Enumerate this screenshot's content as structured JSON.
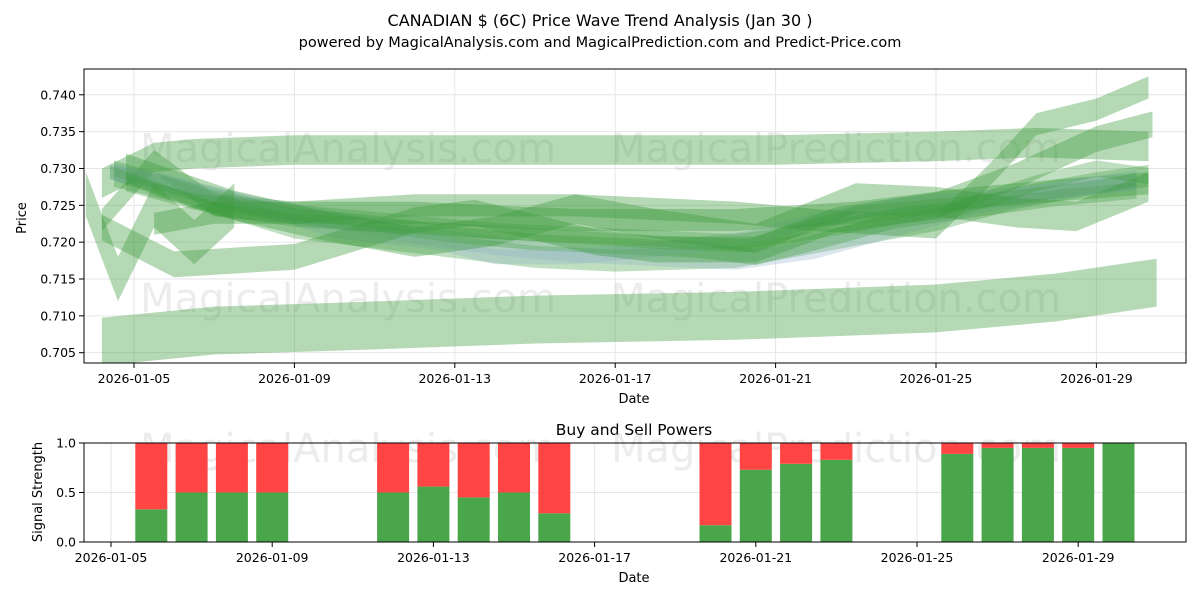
{
  "title": "CANADIAN $ (6C) Price Wave Trend Analysis (Jan 30 )",
  "subtitle": "powered by MagicalAnalysis.com and MagicalPrediction.com and Predict-Price.com",
  "watermarks": [
    "MagicalAnalysis.com",
    "MagicalPrediction.com"
  ],
  "colors": {
    "band": "#3c9c3c",
    "band_blue": "#8fb0c8",
    "buy": "#4aa64a",
    "sell": "#ff4444",
    "grid": "#e6e6e6"
  },
  "chart_data": [
    {
      "type": "area",
      "name": "price-wave",
      "xlabel": "Date",
      "ylabel": "Price",
      "grid": true,
      "xlim": [
        "2026-01-03.7",
        "2026-01-31.7"
      ],
      "ylim": [
        0.7036,
        0.7435
      ],
      "xticks": [
        "2026-01-05",
        "2026-01-09",
        "2026-01-13",
        "2026-01-17",
        "2026-01-21",
        "2026-01-25",
        "2026-01-29"
      ],
      "yticks": [
        0.705,
        0.71,
        0.715,
        0.72,
        0.725,
        0.73,
        0.735,
        0.74
      ],
      "series": [
        {
          "name": "wave-1",
          "x": [
            4.2,
            5.5,
            6.5,
            9,
            13,
            17,
            21,
            25,
            27.5,
            30.3
          ],
          "y": [
            0.728,
            0.7315,
            0.732,
            0.7325,
            0.7325,
            0.7325,
            0.7325,
            0.733,
            0.7335,
            0.733
          ],
          "width": 0.004
        },
        {
          "name": "wave-2",
          "x": [
            4.2,
            5.5,
            7,
            9,
            12,
            16,
            20,
            23,
            26,
            28,
            30.3
          ],
          "y": [
            0.723,
            0.731,
            0.725,
            0.724,
            0.724,
            0.723,
            0.723,
            0.724,
            0.726,
            0.727,
            0.728
          ],
          "width": 0.003
        },
        {
          "name": "wave-3",
          "x": [
            4.5,
            6,
            9,
            12,
            15,
            17,
            20,
            22,
            25,
            27,
            29,
            30.3
          ],
          "y": [
            0.729,
            0.727,
            0.722,
            0.72,
            0.718,
            0.7175,
            0.718,
            0.72,
            0.723,
            0.726,
            0.728,
            0.729
          ],
          "width": 0.003
        },
        {
          "name": "wave-4",
          "x": [
            4.5,
            6,
            8,
            10,
            12,
            14,
            16,
            18,
            20,
            22,
            24,
            26,
            28,
            30
          ],
          "y": [
            0.7295,
            0.7275,
            0.725,
            0.723,
            0.721,
            0.7195,
            0.7185,
            0.718,
            0.7175,
            0.719,
            0.722,
            0.725,
            0.727,
            0.7285
          ],
          "width": 0.0025
        },
        {
          "name": "wave-5",
          "x": [
            4.5,
            7,
            9,
            11,
            13,
            15,
            17,
            19,
            20.5,
            22,
            24,
            26,
            28,
            30
          ],
          "y": [
            0.73,
            0.726,
            0.7235,
            0.7225,
            0.721,
            0.72,
            0.7195,
            0.719,
            0.718,
            0.72,
            0.723,
            0.7245,
            0.726,
            0.727
          ],
          "width": 0.0022
        },
        {
          "name": "wave-6",
          "x": [
            4.4,
            6,
            8,
            10,
            12.5,
            14,
            16,
            18,
            20.3,
            22,
            24,
            26,
            28,
            30
          ],
          "y": [
            0.7295,
            0.728,
            0.725,
            0.7215,
            0.72,
            0.718,
            0.718,
            0.719,
            0.7205,
            0.723,
            0.725,
            0.726,
            0.727,
            0.728
          ],
          "width": 0.002
        },
        {
          "name": "wave-7",
          "x": [
            4.4,
            7,
            9,
            12,
            15,
            18,
            20.3,
            23,
            26,
            29,
            30
          ],
          "y": [
            0.7295,
            0.7245,
            0.723,
            0.722,
            0.721,
            0.72,
            0.7195,
            0.724,
            0.7255,
            0.7275,
            0.7285
          ],
          "width": 0.0018
        },
        {
          "name": "wave-8",
          "x": [
            4.8,
            6.5,
            9,
            12,
            14,
            16,
            18,
            20,
            22,
            24,
            25.5,
            27.5,
            29,
            30.3
          ],
          "y": [
            0.728,
            0.7255,
            0.724,
            0.7225,
            0.7215,
            0.721,
            0.7205,
            0.72,
            0.7215,
            0.7235,
            0.7245,
            0.728,
            0.73,
            0.729
          ],
          "width": 0.0022
        },
        {
          "name": "wave-9",
          "x": [
            4.2,
            6,
            9,
            12,
            13.5,
            15,
            16.5,
            18,
            20.5,
            22.5,
            25,
            27,
            29,
            30.4
          ],
          "y": [
            0.722,
            0.717,
            0.718,
            0.723,
            0.724,
            0.722,
            0.72,
            0.719,
            0.719,
            0.723,
            0.725,
            0.729,
            0.734,
            0.736
          ],
          "width": 0.0035
        },
        {
          "name": "wave-10",
          "x": [
            4.8,
            7.5,
            9.5,
            12,
            14,
            16,
            18,
            20.5,
            23,
            25,
            27,
            28.5,
            30.3
          ],
          "y": [
            0.73,
            0.725,
            0.7225,
            0.72,
            0.7215,
            0.7245,
            0.7225,
            0.7205,
            0.726,
            0.7255,
            0.724,
            0.7235,
            0.7275
          ],
          "width": 0.004
        },
        {
          "name": "wave-11",
          "x": [
            5.5,
            7,
            9,
            12,
            16,
            20,
            22,
            25,
            26.5,
            27.5,
            29,
            30.3
          ],
          "y": [
            0.7225,
            0.724,
            0.724,
            0.725,
            0.725,
            0.724,
            0.723,
            0.722,
            0.73,
            0.736,
            0.738,
            0.741
          ],
          "width": 0.003
        },
        {
          "name": "wave-12",
          "x": [
            3.8,
            4.6,
            5.5,
            6.5,
            7.5
          ],
          "y": [
            0.7265,
            0.715,
            0.725,
            0.72,
            0.725
          ],
          "width": 0.006
        },
        {
          "name": "wave-13",
          "x": [
            4.2,
            7,
            10,
            15,
            20,
            25,
            28,
            30.5
          ],
          "y": [
            0.7065,
            0.708,
            0.7085,
            0.7095,
            0.71,
            0.711,
            0.7125,
            0.7145
          ],
          "width": 0.0065
        }
      ]
    },
    {
      "type": "bar",
      "name": "buy-sell-powers",
      "title": "Buy and Sell Powers",
      "xlabel": "Date",
      "ylabel": "Signal Strength",
      "grid": true,
      "ylim": [
        0.0,
        1.0
      ],
      "yticks": [
        "0.0",
        "0.5",
        "1.0"
      ],
      "xticks": [
        "2026-01-05",
        "2026-01-09",
        "2026-01-13",
        "2026-01-17",
        "2026-01-21",
        "2026-01-25",
        "2026-01-29"
      ],
      "x": [
        6,
        7,
        8,
        9,
        12,
        13,
        14,
        15,
        16,
        20,
        21,
        22,
        23,
        26,
        27,
        28,
        29,
        30
      ],
      "series": [
        {
          "name": "Buy",
          "values": [
            0.33,
            0.5,
            0.5,
            0.5,
            0.5,
            0.56,
            0.45,
            0.5,
            0.29,
            0.17,
            0.73,
            0.79,
            0.83,
            0.89,
            0.95,
            0.95,
            0.95,
            1.0
          ]
        },
        {
          "name": "Sell",
          "values": [
            0.67,
            0.5,
            0.5,
            0.5,
            0.5,
            0.44,
            0.55,
            0.5,
            0.71,
            0.83,
            0.27,
            0.21,
            0.17,
            0.11,
            0.05,
            0.05,
            0.05,
            0.0
          ]
        }
      ]
    }
  ]
}
